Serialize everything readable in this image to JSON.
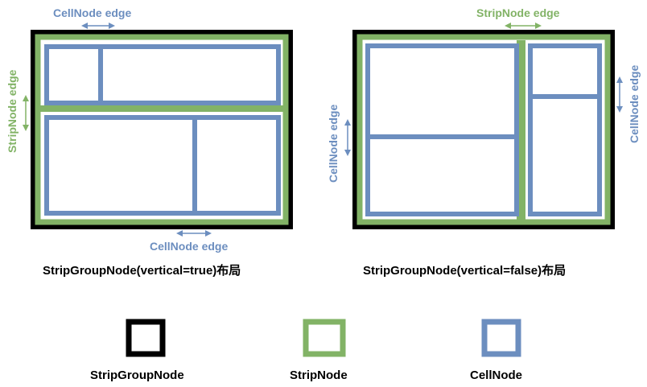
{
  "colors": {
    "strip_group": "#000000",
    "strip": "#82b366",
    "cell": "#6c8ebf",
    "background": "#ffffff"
  },
  "left_diagram": {
    "caption": "StripGroupNode(vertical=true)布局",
    "top_label": "CellNode edge",
    "side_label": "StripNode edge",
    "bottom_label": "CellNode edge"
  },
  "right_diagram": {
    "caption": "StripGroupNode(vertical=false)布局",
    "top_label": "StripNode edge",
    "left_label": "CellNode edge",
    "right_label": "CellNode edge"
  },
  "legend": {
    "items": [
      {
        "label": "StripGroupNode",
        "color": "#000000"
      },
      {
        "label": "StripNode",
        "color": "#82b366"
      },
      {
        "label": "CellNode",
        "color": "#6c8ebf"
      }
    ]
  }
}
